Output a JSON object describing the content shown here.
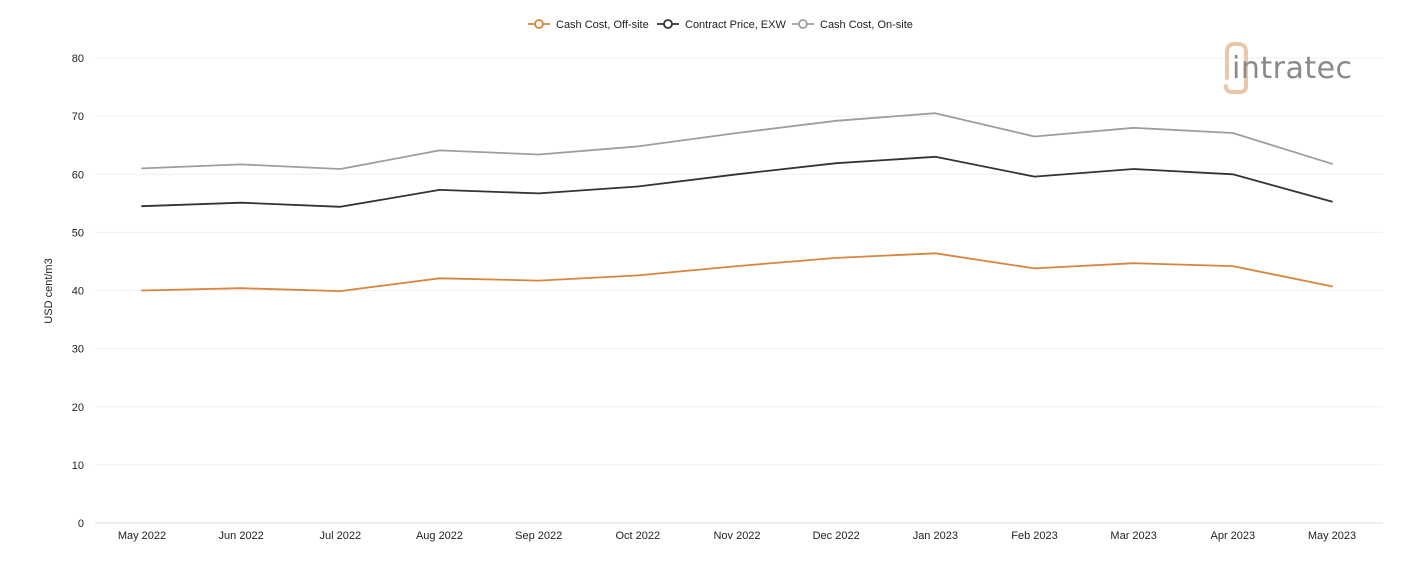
{
  "chart_data": {
    "type": "line",
    "title": "",
    "xlabel": "",
    "ylabel": "USD cent/m3",
    "ylim": [
      0,
      80
    ],
    "yticks": [
      0,
      10,
      20,
      30,
      40,
      50,
      60,
      70,
      80
    ],
    "grid": true,
    "legend_position": "top-center",
    "categories": [
      "May 2022",
      "Jun 2022",
      "Jul 2022",
      "Aug 2022",
      "Sep 2022",
      "Oct 2022",
      "Nov 2022",
      "Dec 2022",
      "Jan 2023",
      "Feb 2023",
      "Mar 2023",
      "Apr 2023",
      "May 2023"
    ],
    "series": [
      {
        "name": "Cash Cost, Off-site",
        "color": "#d9853b",
        "values": [
          40.0,
          40.4,
          39.9,
          42.1,
          41.7,
          42.6,
          44.2,
          45.6,
          46.4,
          43.8,
          44.7,
          44.2,
          40.7
        ]
      },
      {
        "name": "Contract Price, EXW",
        "color": "#333333",
        "values": [
          54.5,
          55.1,
          54.4,
          57.3,
          56.7,
          57.9,
          60.0,
          61.9,
          63.0,
          59.6,
          60.9,
          60.0,
          55.3
        ]
      },
      {
        "name": "Cash Cost, On-site",
        "color": "#9e9e9e",
        "values": [
          61.0,
          61.7,
          60.9,
          64.1,
          63.4,
          64.8,
          67.1,
          69.2,
          70.5,
          66.5,
          68.0,
          67.1,
          61.8
        ]
      }
    ]
  },
  "logo": {
    "text": "intratec",
    "color": "#8a8a8a",
    "accent": "#e8c8a8"
  }
}
